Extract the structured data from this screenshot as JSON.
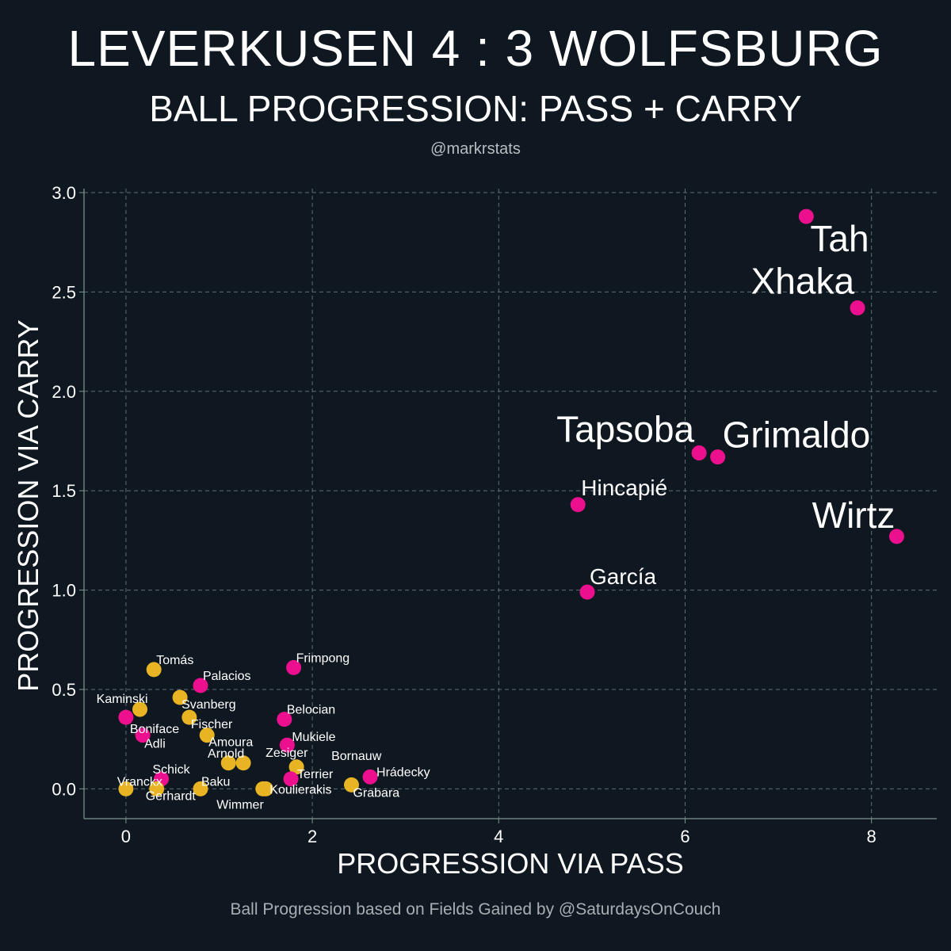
{
  "title": "LEVERKUSEN 4 : 3 WOLFSBURG",
  "subtitle": "BALL PROGRESSION: PASS + CARRY",
  "handle": "@markrstats",
  "footer": "Ball Progression based on Fields Gained by @SaturdaysOnCouch",
  "colors": {
    "background": "#0f1820",
    "leverkusen": "#ec0f8e",
    "wolfsburg": "#e8b423",
    "grid": "#5d6f73",
    "axis": "#7e9691",
    "text": "#ffffff"
  },
  "chart_data": {
    "type": "scatter",
    "xlabel": "PROGRESSION VIA PASS",
    "ylabel": "PROGRESSION VIA CARRY",
    "xlim": [
      -0.45,
      8.7
    ],
    "ylim": [
      -0.15,
      3.02
    ],
    "xticks": [
      0,
      2,
      4,
      6,
      8
    ],
    "xtick_labels": [
      "0",
      "2",
      "4",
      "6",
      "8"
    ],
    "yticks": [
      0.0,
      0.5,
      1.0,
      1.5,
      2.0,
      2.5,
      3.0
    ],
    "ytick_labels": [
      "0.0",
      "0.5",
      "1.0",
      "1.5",
      "2.0",
      "2.5",
      "3.0"
    ],
    "grid": true,
    "points": [
      {
        "name": "Tah",
        "team": "leverkusen",
        "x": 7.3,
        "y": 2.88,
        "label_size": "large",
        "label_pos": "below-right"
      },
      {
        "name": "Xhaka",
        "team": "leverkusen",
        "x": 7.85,
        "y": 2.42,
        "label_size": "large",
        "label_pos": "above-left"
      },
      {
        "name": "Tapsoba",
        "team": "leverkusen",
        "x": 6.15,
        "y": 1.69,
        "label_size": "large",
        "label_pos": "above-left"
      },
      {
        "name": "Grimaldo",
        "team": "leverkusen",
        "x": 6.35,
        "y": 1.67,
        "label_size": "large",
        "label_pos": "above-right"
      },
      {
        "name": "Hincapié",
        "team": "leverkusen",
        "x": 4.85,
        "y": 1.43,
        "label_size": "medium",
        "label_pos": "above-right"
      },
      {
        "name": "Wirtz",
        "team": "leverkusen",
        "x": 8.27,
        "y": 1.27,
        "label_size": "large",
        "label_pos": "above-left"
      },
      {
        "name": "García",
        "team": "leverkusen",
        "x": 4.95,
        "y": 0.99,
        "label_size": "medium",
        "label_pos": "above-right"
      },
      {
        "name": "Frimpong",
        "team": "leverkusen",
        "x": 1.8,
        "y": 0.61,
        "label_size": "small",
        "label_pos": "above-right"
      },
      {
        "name": "Tomás",
        "team": "wolfsburg",
        "x": 0.3,
        "y": 0.6,
        "label_size": "small",
        "label_pos": "above-right"
      },
      {
        "name": "Palacios",
        "team": "leverkusen",
        "x": 0.8,
        "y": 0.52,
        "label_size": "small",
        "label_pos": "above-right"
      },
      {
        "name": "Svanberg",
        "team": "wolfsburg",
        "x": 0.58,
        "y": 0.46,
        "label_size": "small",
        "label_pos": "below-right"
      },
      {
        "name": "Kaminski",
        "team": "wolfsburg",
        "x": 0.15,
        "y": 0.4,
        "label_size": "small",
        "label_pos": "above-left"
      },
      {
        "name": "Belocian",
        "team": "leverkusen",
        "x": 1.7,
        "y": 0.35,
        "label_size": "small",
        "label_pos": "above-right"
      },
      {
        "name": "Boniface",
        "team": "leverkusen",
        "x": 0.0,
        "y": 0.36,
        "label_size": "small",
        "label_pos": "below-right"
      },
      {
        "name": "Fischer",
        "team": "wolfsburg",
        "x": 0.68,
        "y": 0.36,
        "label_size": "small",
        "label_pos": "below-right"
      },
      {
        "name": "Adli",
        "team": "leverkusen",
        "x": 0.18,
        "y": 0.27,
        "label_size": "small",
        "label_pos": "below-right"
      },
      {
        "name": "Amoura",
        "team": "wolfsburg",
        "x": 0.87,
        "y": 0.27,
        "label_size": "small",
        "label_pos": "below-right"
      },
      {
        "name": "Mukiele",
        "team": "leverkusen",
        "x": 1.73,
        "y": 0.22,
        "label_size": "small",
        "label_pos": "above-right"
      },
      {
        "name": "Arnold",
        "team": "wolfsburg",
        "x": 1.1,
        "y": 0.13,
        "label_size": "small",
        "label_pos": "above-left"
      },
      {
        "name": "Zesiger",
        "team": "wolfsburg",
        "x": 1.26,
        "y": 0.13,
        "label_size": "small",
        "label_pos": "above-right"
      },
      {
        "name": "Bornauw",
        "team": "wolfsburg",
        "x": 1.83,
        "y": 0.11,
        "label_size": "small",
        "label_pos": "none"
      },
      {
        "name": "Terrier",
        "team": "leverkusen",
        "x": 1.77,
        "y": 0.05,
        "label_size": "small",
        "label_pos": "above-right"
      },
      {
        "name": "Schick",
        "team": "leverkusen",
        "x": 0.38,
        "y": 0.05,
        "label_size": "small",
        "label_pos": "above-left"
      },
      {
        "name": "Hrádecky",
        "team": "leverkusen",
        "x": 2.62,
        "y": 0.06,
        "label_size": "small",
        "label_pos": "above-right"
      },
      {
        "name": "Grabara",
        "team": "wolfsburg",
        "x": 2.42,
        "y": 0.02,
        "label_size": "small",
        "label_pos": "below-right"
      },
      {
        "name": "Vranckx",
        "team": "wolfsburg",
        "x": 0.0,
        "y": 0.0,
        "label_size": "small",
        "label_pos": "above-left"
      },
      {
        "name": "Gerhardt",
        "team": "wolfsburg",
        "x": 0.33,
        "y": 0.0,
        "label_size": "small",
        "label_pos": "below-right"
      },
      {
        "name": "Baku",
        "team": "wolfsburg",
        "x": 0.8,
        "y": 0.0,
        "label_size": "small",
        "label_pos": "above-right"
      },
      {
        "name": "Koulierakis",
        "team": "wolfsburg",
        "x": 1.5,
        "y": 0.0,
        "label_size": "small",
        "label_pos": "below-right"
      },
      {
        "name": "Wimmer",
        "team": "wolfsburg",
        "x": 1.47,
        "y": 0.0,
        "label_size": "small",
        "label_pos": "below-left"
      }
    ]
  }
}
